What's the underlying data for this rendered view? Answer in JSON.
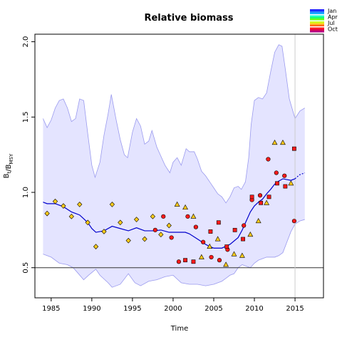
{
  "chart_data": {
    "type": "scatter",
    "title": "Relative biomass",
    "xlabel": "Time",
    "ylabel": "B_t/B_MSY",
    "xlim": [
      1983,
      2018.5
    ],
    "ylim": [
      0.3,
      2.05
    ],
    "x_ticks": [
      1985,
      1990,
      1995,
      2000,
      2005,
      2010,
      2015
    ],
    "y_ticks": [
      0.5,
      1.0,
      1.5,
      2.0
    ],
    "y_tick_labels": [
      "0.5",
      "1.0",
      "1.5",
      "2.0"
    ],
    "reference_line_y": 0.5,
    "vertical_line_x": 2015,
    "grid": false,
    "legend_position": "top-right",
    "legend": [
      {
        "label": "Jan",
        "colors": [
          "#1a1aff",
          "#1a66ff",
          "#1ab3ff"
        ]
      },
      {
        "label": "Apr",
        "colors": [
          "#1affcc",
          "#1aff66",
          "#66ff1a"
        ]
      },
      {
        "label": "Jul",
        "colors": [
          "#ccff1a",
          "#ffcc1a",
          "#ff661a"
        ]
      },
      {
        "label": "Oct",
        "colors": [
          "#ff1a1a",
          "#e0004a",
          "#b30080"
        ]
      }
    ],
    "ci_upper": [
      [
        1984.0,
        1.49
      ],
      [
        1984.5,
        1.43
      ],
      [
        1985.0,
        1.48
      ],
      [
        1985.5,
        1.56
      ],
      [
        1986.0,
        1.61
      ],
      [
        1986.5,
        1.62
      ],
      [
        1987.0,
        1.56
      ],
      [
        1987.5,
        1.47
      ],
      [
        1988.0,
        1.49
      ],
      [
        1988.5,
        1.62
      ],
      [
        1989.0,
        1.61
      ],
      [
        1989.5,
        1.39
      ],
      [
        1990.0,
        1.18
      ],
      [
        1990.4,
        1.1
      ],
      [
        1991.0,
        1.2
      ],
      [
        1991.5,
        1.38
      ],
      [
        1992.0,
        1.52
      ],
      [
        1992.4,
        1.65
      ],
      [
        1993.0,
        1.48
      ],
      [
        1993.5,
        1.35
      ],
      [
        1994.0,
        1.25
      ],
      [
        1994.4,
        1.23
      ],
      [
        1995.0,
        1.4
      ],
      [
        1995.5,
        1.49
      ],
      [
        1996.0,
        1.44
      ],
      [
        1996.5,
        1.32
      ],
      [
        1997.0,
        1.34
      ],
      [
        1997.4,
        1.41
      ],
      [
        1998.0,
        1.3
      ],
      [
        1998.5,
        1.24
      ],
      [
        1999.0,
        1.18
      ],
      [
        1999.6,
        1.13
      ],
      [
        2000.0,
        1.2
      ],
      [
        2000.5,
        1.23
      ],
      [
        2001.0,
        1.18
      ],
      [
        2001.6,
        1.29
      ],
      [
        2002.0,
        1.27
      ],
      [
        2002.6,
        1.27
      ],
      [
        2003.0,
        1.22
      ],
      [
        2003.5,
        1.14
      ],
      [
        2004.0,
        1.11
      ],
      [
        2004.5,
        1.07
      ],
      [
        2005.0,
        1.03
      ],
      [
        2005.5,
        0.99
      ],
      [
        2006.0,
        0.97
      ],
      [
        2006.5,
        0.93
      ],
      [
        2007.0,
        0.97
      ],
      [
        2007.5,
        1.03
      ],
      [
        2008.0,
        1.04
      ],
      [
        2008.4,
        1.02
      ],
      [
        2008.9,
        1.07
      ],
      [
        2009.3,
        1.23
      ],
      [
        2009.6,
        1.45
      ],
      [
        2010.0,
        1.61
      ],
      [
        2010.5,
        1.63
      ],
      [
        2011.0,
        1.62
      ],
      [
        2011.5,
        1.66
      ],
      [
        2012.0,
        1.8
      ],
      [
        2012.5,
        1.93
      ],
      [
        2013.0,
        1.98
      ],
      [
        2013.4,
        1.97
      ],
      [
        2013.8,
        1.82
      ],
      [
        2014.3,
        1.62
      ],
      [
        2015.0,
        1.49
      ],
      [
        2015.6,
        1.54
      ],
      [
        2016.2,
        1.56
      ]
    ],
    "ci_lower": [
      [
        1984.0,
        0.59
      ],
      [
        1985.0,
        0.57
      ],
      [
        1986.0,
        0.53
      ],
      [
        1987.0,
        0.52
      ],
      [
        1987.7,
        0.5
      ],
      [
        1988.2,
        0.47
      ],
      [
        1989.0,
        0.42
      ],
      [
        1989.6,
        0.45
      ],
      [
        1990.5,
        0.49
      ],
      [
        1991.0,
        0.45
      ],
      [
        1992.0,
        0.4
      ],
      [
        1992.5,
        0.37
      ],
      [
        1993.5,
        0.39
      ],
      [
        1994.5,
        0.46
      ],
      [
        1995.3,
        0.4
      ],
      [
        1996.0,
        0.38
      ],
      [
        1997.0,
        0.41
      ],
      [
        1998.0,
        0.42
      ],
      [
        1999.0,
        0.44
      ],
      [
        2000.0,
        0.45
      ],
      [
        2001.0,
        0.4
      ],
      [
        2002.0,
        0.39
      ],
      [
        2003.0,
        0.39
      ],
      [
        2004.0,
        0.38
      ],
      [
        2005.0,
        0.39
      ],
      [
        2006.0,
        0.41
      ],
      [
        2006.5,
        0.43
      ],
      [
        2007.0,
        0.45
      ],
      [
        2007.5,
        0.46
      ],
      [
        2008.0,
        0.5
      ],
      [
        2008.5,
        0.52
      ],
      [
        2009.0,
        0.51
      ],
      [
        2009.5,
        0.5
      ],
      [
        2010.0,
        0.53
      ],
      [
        2010.5,
        0.55
      ],
      [
        2011.0,
        0.56
      ],
      [
        2011.5,
        0.57
      ],
      [
        2012.0,
        0.57
      ],
      [
        2012.5,
        0.57
      ],
      [
        2013.0,
        0.58
      ],
      [
        2013.5,
        0.6
      ],
      [
        2014.0,
        0.67
      ],
      [
        2014.5,
        0.74
      ],
      [
        2015.0,
        0.79
      ],
      [
        2015.6,
        0.81
      ],
      [
        2016.2,
        0.82
      ]
    ],
    "fit_line": [
      [
        1984.0,
        0.935
      ],
      [
        1984.5,
        0.925
      ],
      [
        1985.5,
        0.925
      ],
      [
        1986.5,
        0.905
      ],
      [
        1987.5,
        0.87
      ],
      [
        1988.5,
        0.85
      ],
      [
        1989.5,
        0.8
      ],
      [
        1990.0,
        0.76
      ],
      [
        1990.5,
        0.735
      ],
      [
        1991.5,
        0.745
      ],
      [
        1992.5,
        0.775
      ],
      [
        1993.5,
        0.76
      ],
      [
        1994.5,
        0.745
      ],
      [
        1995.5,
        0.765
      ],
      [
        1996.5,
        0.745
      ],
      [
        1997.5,
        0.745
      ],
      [
        1998.5,
        0.75
      ],
      [
        1999.5,
        0.735
      ],
      [
        2000.5,
        0.735
      ],
      [
        2001.5,
        0.735
      ],
      [
        2002.0,
        0.725
      ],
      [
        2003.0,
        0.69
      ],
      [
        2004.0,
        0.655
      ],
      [
        2004.5,
        0.64
      ],
      [
        2005.0,
        0.63
      ],
      [
        2006.0,
        0.63
      ],
      [
        2007.0,
        0.655
      ],
      [
        2008.0,
        0.7
      ],
      [
        2008.5,
        0.75
      ],
      [
        2009.0,
        0.81
      ],
      [
        2009.5,
        0.87
      ],
      [
        2010.0,
        0.91
      ],
      [
        2010.5,
        0.935
      ],
      [
        2011.0,
        0.955
      ],
      [
        2011.5,
        0.99
      ],
      [
        2012.0,
        1.02
      ],
      [
        2012.5,
        1.055
      ],
      [
        2013.0,
        1.075
      ],
      [
        2013.5,
        1.09
      ],
      [
        2014.0,
        1.085
      ],
      [
        2014.5,
        1.08
      ],
      [
        2015.0,
        1.09
      ]
    ],
    "projection_line": [
      [
        2015.0,
        1.09
      ],
      [
        2015.5,
        1.115
      ],
      [
        2016.2,
        1.13
      ]
    ],
    "points": [
      {
        "x": 1984.5,
        "y": 0.86,
        "shape": "diamond",
        "color": "#ffcc1a"
      },
      {
        "x": 1985.5,
        "y": 0.94,
        "shape": "diamond",
        "color": "#ffcc1a"
      },
      {
        "x": 1986.5,
        "y": 0.91,
        "shape": "diamond",
        "color": "#ffcc1a"
      },
      {
        "x": 1987.5,
        "y": 0.84,
        "shape": "diamond",
        "color": "#ffcc1a"
      },
      {
        "x": 1988.5,
        "y": 0.92,
        "shape": "diamond",
        "color": "#ffcc1a"
      },
      {
        "x": 1989.5,
        "y": 0.8,
        "shape": "diamond",
        "color": "#ffcc1a"
      },
      {
        "x": 1990.5,
        "y": 0.64,
        "shape": "diamond",
        "color": "#ffcc1a"
      },
      {
        "x": 1991.5,
        "y": 0.74,
        "shape": "diamond",
        "color": "#ffcc1a"
      },
      {
        "x": 1992.5,
        "y": 0.92,
        "shape": "diamond",
        "color": "#ffcc1a"
      },
      {
        "x": 1993.5,
        "y": 0.8,
        "shape": "diamond",
        "color": "#ffcc1a"
      },
      {
        "x": 1994.5,
        "y": 0.68,
        "shape": "diamond",
        "color": "#ffcc1a"
      },
      {
        "x": 1995.5,
        "y": 0.82,
        "shape": "diamond",
        "color": "#ffcc1a"
      },
      {
        "x": 1996.5,
        "y": 0.69,
        "shape": "diamond",
        "color": "#ffcc1a"
      },
      {
        "x": 1997.5,
        "y": 0.84,
        "shape": "diamond",
        "color": "#ffcc1a"
      },
      {
        "x": 1998.5,
        "y": 0.72,
        "shape": "diamond",
        "color": "#ffcc1a"
      },
      {
        "x": 1999.5,
        "y": 0.78,
        "shape": "diamond",
        "color": "#ffcc1a"
      },
      {
        "x": 1997.8,
        "y": 0.75,
        "shape": "circle",
        "color": "#ff1a1a"
      },
      {
        "x": 1998.8,
        "y": 0.84,
        "shape": "circle",
        "color": "#ff1a1a"
      },
      {
        "x": 1999.8,
        "y": 0.7,
        "shape": "circle",
        "color": "#ff1a1a"
      },
      {
        "x": 2000.7,
        "y": 0.54,
        "shape": "circle",
        "color": "#ff1a1a"
      },
      {
        "x": 2001.8,
        "y": 0.84,
        "shape": "circle",
        "color": "#ff1a1a"
      },
      {
        "x": 2002.8,
        "y": 0.77,
        "shape": "circle",
        "color": "#ff1a1a"
      },
      {
        "x": 2003.7,
        "y": 0.67,
        "shape": "circle",
        "color": "#ff1a1a"
      },
      {
        "x": 2004.7,
        "y": 0.57,
        "shape": "circle",
        "color": "#ff1a1a"
      },
      {
        "x": 2005.7,
        "y": 0.55,
        "shape": "circle",
        "color": "#ff1a1a"
      },
      {
        "x": 2006.7,
        "y": 0.62,
        "shape": "circle",
        "color": "#ff1a1a"
      },
      {
        "x": 2008.7,
        "y": 0.78,
        "shape": "circle",
        "color": "#ff1a1a"
      },
      {
        "x": 2009.7,
        "y": 0.95,
        "shape": "circle",
        "color": "#ff1a1a"
      },
      {
        "x": 2010.7,
        "y": 0.98,
        "shape": "circle",
        "color": "#ff1a1a"
      },
      {
        "x": 2011.7,
        "y": 1.22,
        "shape": "circle",
        "color": "#ff1a1a"
      },
      {
        "x": 2012.7,
        "y": 1.13,
        "shape": "circle",
        "color": "#ff1a1a"
      },
      {
        "x": 2013.7,
        "y": 1.11,
        "shape": "circle",
        "color": "#ff1a1a"
      },
      {
        "x": 2014.9,
        "y": 0.81,
        "shape": "circle",
        "color": "#ff1a1a"
      },
      {
        "x": 2001.5,
        "y": 0.55,
        "shape": "square",
        "color": "#ff1a1a"
      },
      {
        "x": 2002.5,
        "y": 0.54,
        "shape": "square",
        "color": "#ff1a1a"
      },
      {
        "x": 2004.6,
        "y": 0.74,
        "shape": "square",
        "color": "#ff1a1a"
      },
      {
        "x": 2005.6,
        "y": 0.8,
        "shape": "square",
        "color": "#ff1a1a"
      },
      {
        "x": 2006.6,
        "y": 0.64,
        "shape": "square",
        "color": "#ff1a1a"
      },
      {
        "x": 2007.6,
        "y": 0.75,
        "shape": "square",
        "color": "#ff1a1a"
      },
      {
        "x": 2008.6,
        "y": 0.69,
        "shape": "square",
        "color": "#ff1a1a"
      },
      {
        "x": 2009.7,
        "y": 0.97,
        "shape": "square",
        "color": "#ff1a1a"
      },
      {
        "x": 2010.8,
        "y": 0.93,
        "shape": "square",
        "color": "#ff1a1a"
      },
      {
        "x": 2011.8,
        "y": 0.97,
        "shape": "square",
        "color": "#ff1a1a"
      },
      {
        "x": 2012.8,
        "y": 1.06,
        "shape": "square",
        "color": "#ff1a1a"
      },
      {
        "x": 2013.8,
        "y": 1.04,
        "shape": "square",
        "color": "#ff1a1a"
      },
      {
        "x": 2014.9,
        "y": 1.29,
        "shape": "square",
        "color": "#ff1a1a"
      },
      {
        "x": 2000.5,
        "y": 0.92,
        "shape": "triangle",
        "color": "#ffcc1a"
      },
      {
        "x": 2001.5,
        "y": 0.9,
        "shape": "triangle",
        "color": "#ffcc1a"
      },
      {
        "x": 2002.5,
        "y": 0.84,
        "shape": "triangle",
        "color": "#ffcc1a"
      },
      {
        "x": 2003.5,
        "y": 0.57,
        "shape": "triangle",
        "color": "#ffcc1a"
      },
      {
        "x": 2004.5,
        "y": 0.64,
        "shape": "triangle",
        "color": "#ffcc1a"
      },
      {
        "x": 2005.5,
        "y": 0.69,
        "shape": "triangle",
        "color": "#ffcc1a"
      },
      {
        "x": 2006.5,
        "y": 0.52,
        "shape": "triangle",
        "color": "#ffcc1a"
      },
      {
        "x": 2007.5,
        "y": 0.59,
        "shape": "triangle",
        "color": "#ffcc1a"
      },
      {
        "x": 2008.5,
        "y": 0.58,
        "shape": "triangle",
        "color": "#ffcc1a"
      },
      {
        "x": 2009.5,
        "y": 0.72,
        "shape": "triangle",
        "color": "#ffcc1a"
      },
      {
        "x": 2010.5,
        "y": 0.81,
        "shape": "triangle",
        "color": "#ffcc1a"
      },
      {
        "x": 2011.5,
        "y": 0.93,
        "shape": "triangle",
        "color": "#ffcc1a"
      },
      {
        "x": 2012.5,
        "y": 1.33,
        "shape": "triangle",
        "color": "#ffcc1a"
      },
      {
        "x": 2013.5,
        "y": 1.33,
        "shape": "triangle",
        "color": "#ffcc1a"
      },
      {
        "x": 2014.5,
        "y": 1.06,
        "shape": "triangle",
        "color": "#ffcc1a"
      }
    ]
  }
}
